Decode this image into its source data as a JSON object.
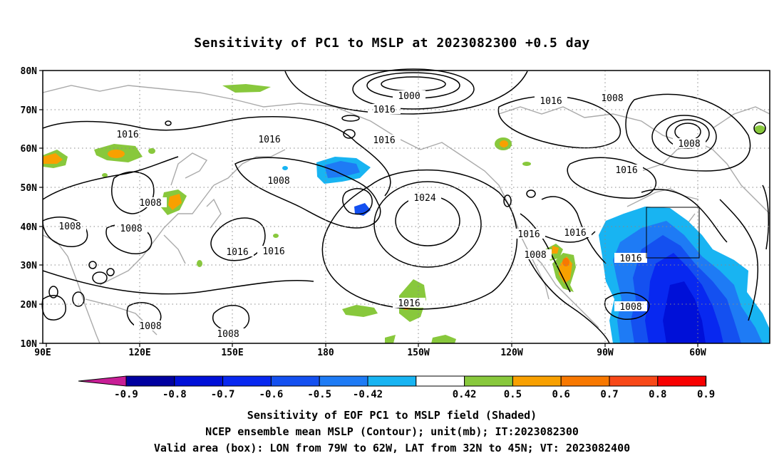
{
  "title": "Sensitivity of PC1 to MSLP at 2023082300 +0.5 day",
  "lat_ticks": [
    "10N",
    "20N",
    "30N",
    "40N",
    "50N",
    "60N",
    "70N",
    "80N"
  ],
  "lon_ticks": [
    "90E",
    "120E",
    "150E",
    "180",
    "150W",
    "120W",
    "90W",
    "60W"
  ],
  "contour_labels": [
    "1000",
    "1016",
    "1016",
    "1008",
    "1016",
    "1016",
    "1008",
    "1008",
    "1008",
    "1008",
    "1016",
    "1016",
    "1024",
    "1016",
    "1016",
    "1008",
    "1016",
    "1016",
    "1008",
    "1008",
    "1016",
    "1008"
  ],
  "colorbar": {
    "labels": [
      "-0.9",
      "-0.8",
      "-0.7",
      "-0.6",
      "-0.5",
      "-0.42",
      "0.42",
      "0.5",
      "0.6",
      "0.7",
      "0.8",
      "0.9"
    ],
    "colors": [
      "#0000a0",
      "#0010d8",
      "#0828f0",
      "#1450f0",
      "#1e7bf5",
      "#18b4f2",
      "#ffffff",
      "#88c83c",
      "#f8a000",
      "#f87800",
      "#f84818",
      "#f80000"
    ],
    "low_color": "#c81e96",
    "high_color": "#f8a0c8"
  },
  "footer": {
    "line1": "Sensitivity of EOF PC1 to MSLP field (Shaded)",
    "line2": "NCEP ensemble mean MSLP (Contour); unit(mb); IT:2023082300",
    "line3": "Valid area (box): LON from 79W to 62W, LAT from 32N to 45N; VT: 2023082400"
  }
}
